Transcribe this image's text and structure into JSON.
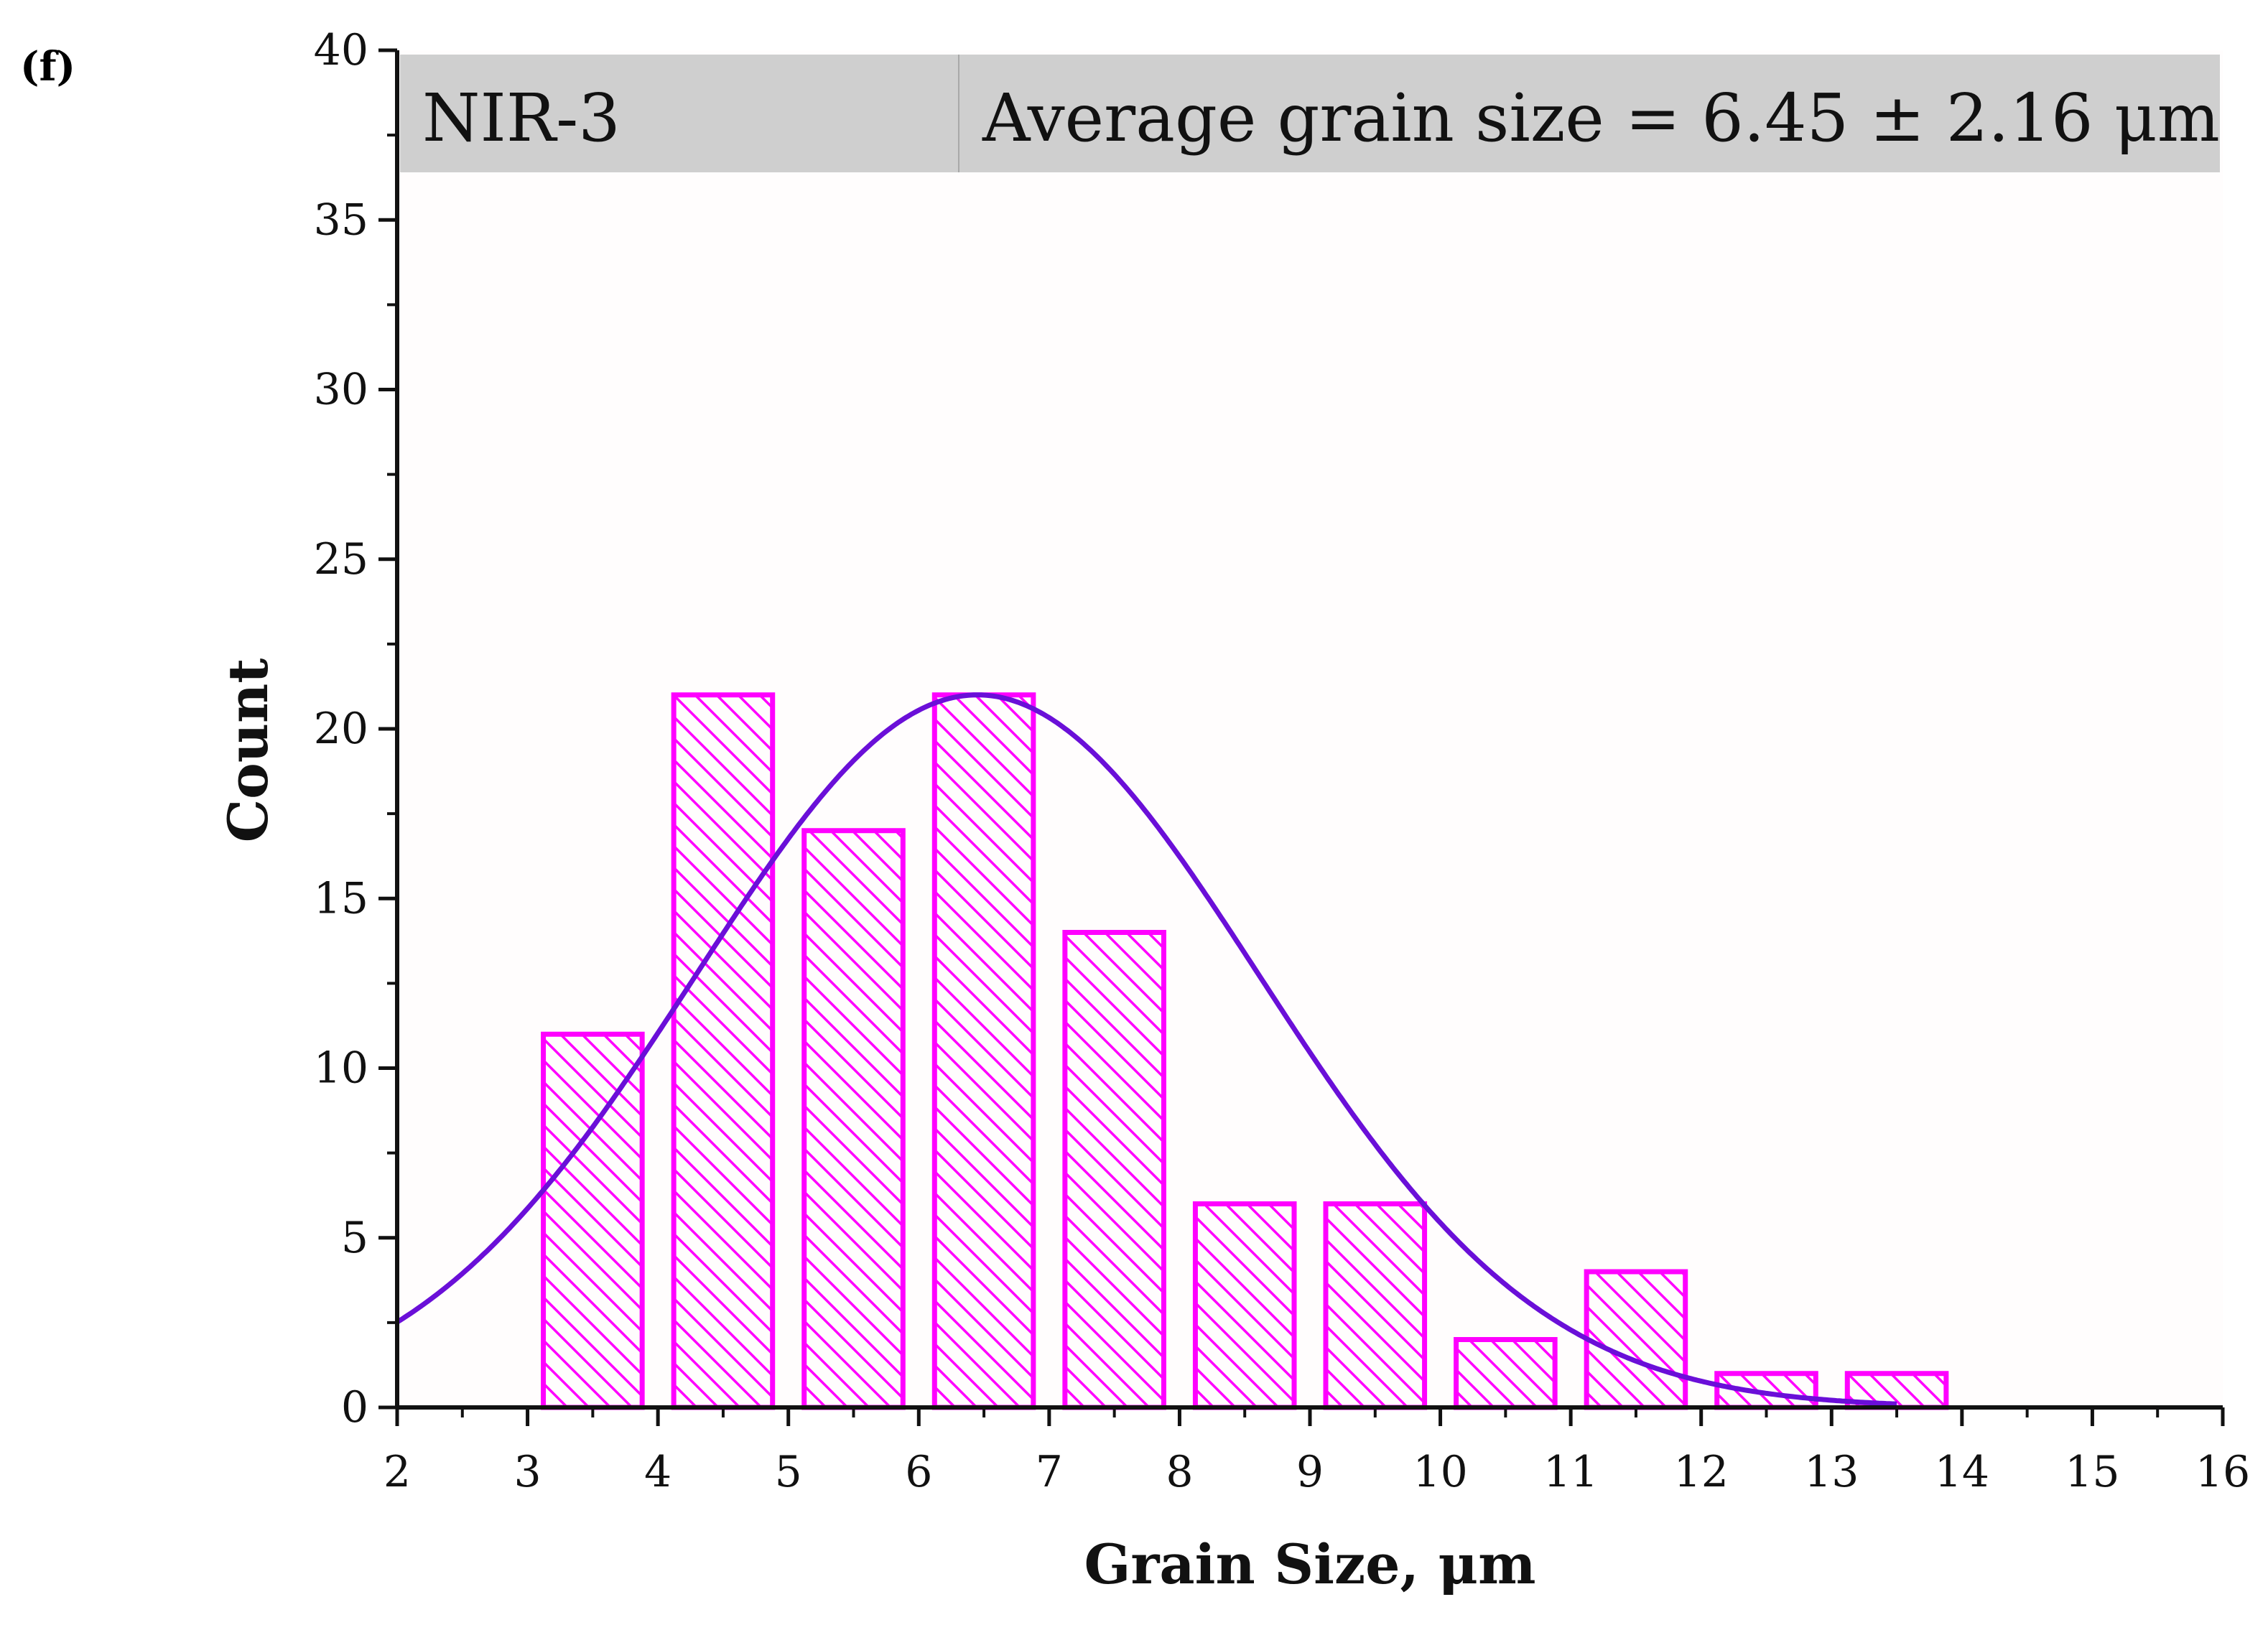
{
  "panel_label": "(f)",
  "header": {
    "sample": "NIR-3",
    "stat": "Average grain size = 6.45 ± 2.16 μm"
  },
  "colors": {
    "bar": "#ff00ff",
    "fit": "#6a0fd8",
    "plot_bg": "#fffdfd",
    "header_bg": "#cfcfcf"
  },
  "chart_data": {
    "type": "bar",
    "title": "Average grain size = 6.45 ± 2.16 μm",
    "subtitle": "NIR-3",
    "xlabel": "Grain Size, μm",
    "ylabel": "Count",
    "xlim": [
      2,
      16
    ],
    "ylim": [
      0,
      40
    ],
    "x_ticks": [
      2,
      3,
      4,
      5,
      6,
      7,
      8,
      9,
      10,
      11,
      12,
      13,
      14,
      15,
      16
    ],
    "y_ticks": [
      0,
      5,
      10,
      15,
      20,
      25,
      30,
      35,
      40
    ],
    "bins": [
      {
        "start": 3,
        "end": 4,
        "count": 11
      },
      {
        "start": 4,
        "end": 5,
        "count": 21
      },
      {
        "start": 5,
        "end": 6,
        "count": 17
      },
      {
        "start": 6,
        "end": 7,
        "count": 21
      },
      {
        "start": 7,
        "end": 8,
        "count": 14
      },
      {
        "start": 8,
        "end": 9,
        "count": 6
      },
      {
        "start": 9,
        "end": 10,
        "count": 6
      },
      {
        "start": 10,
        "end": 11,
        "count": 2
      },
      {
        "start": 11,
        "end": 12,
        "count": 4
      },
      {
        "start": 12,
        "end": 13,
        "count": 1
      },
      {
        "start": 13,
        "end": 14,
        "count": 1
      }
    ],
    "fit": {
      "type": "gaussian",
      "mean": 6.45,
      "sigma": 2.16,
      "peak": 21,
      "x_range": [
        2,
        13.5
      ]
    },
    "grid": false,
    "bar_pattern": "diagonal-hatch"
  }
}
